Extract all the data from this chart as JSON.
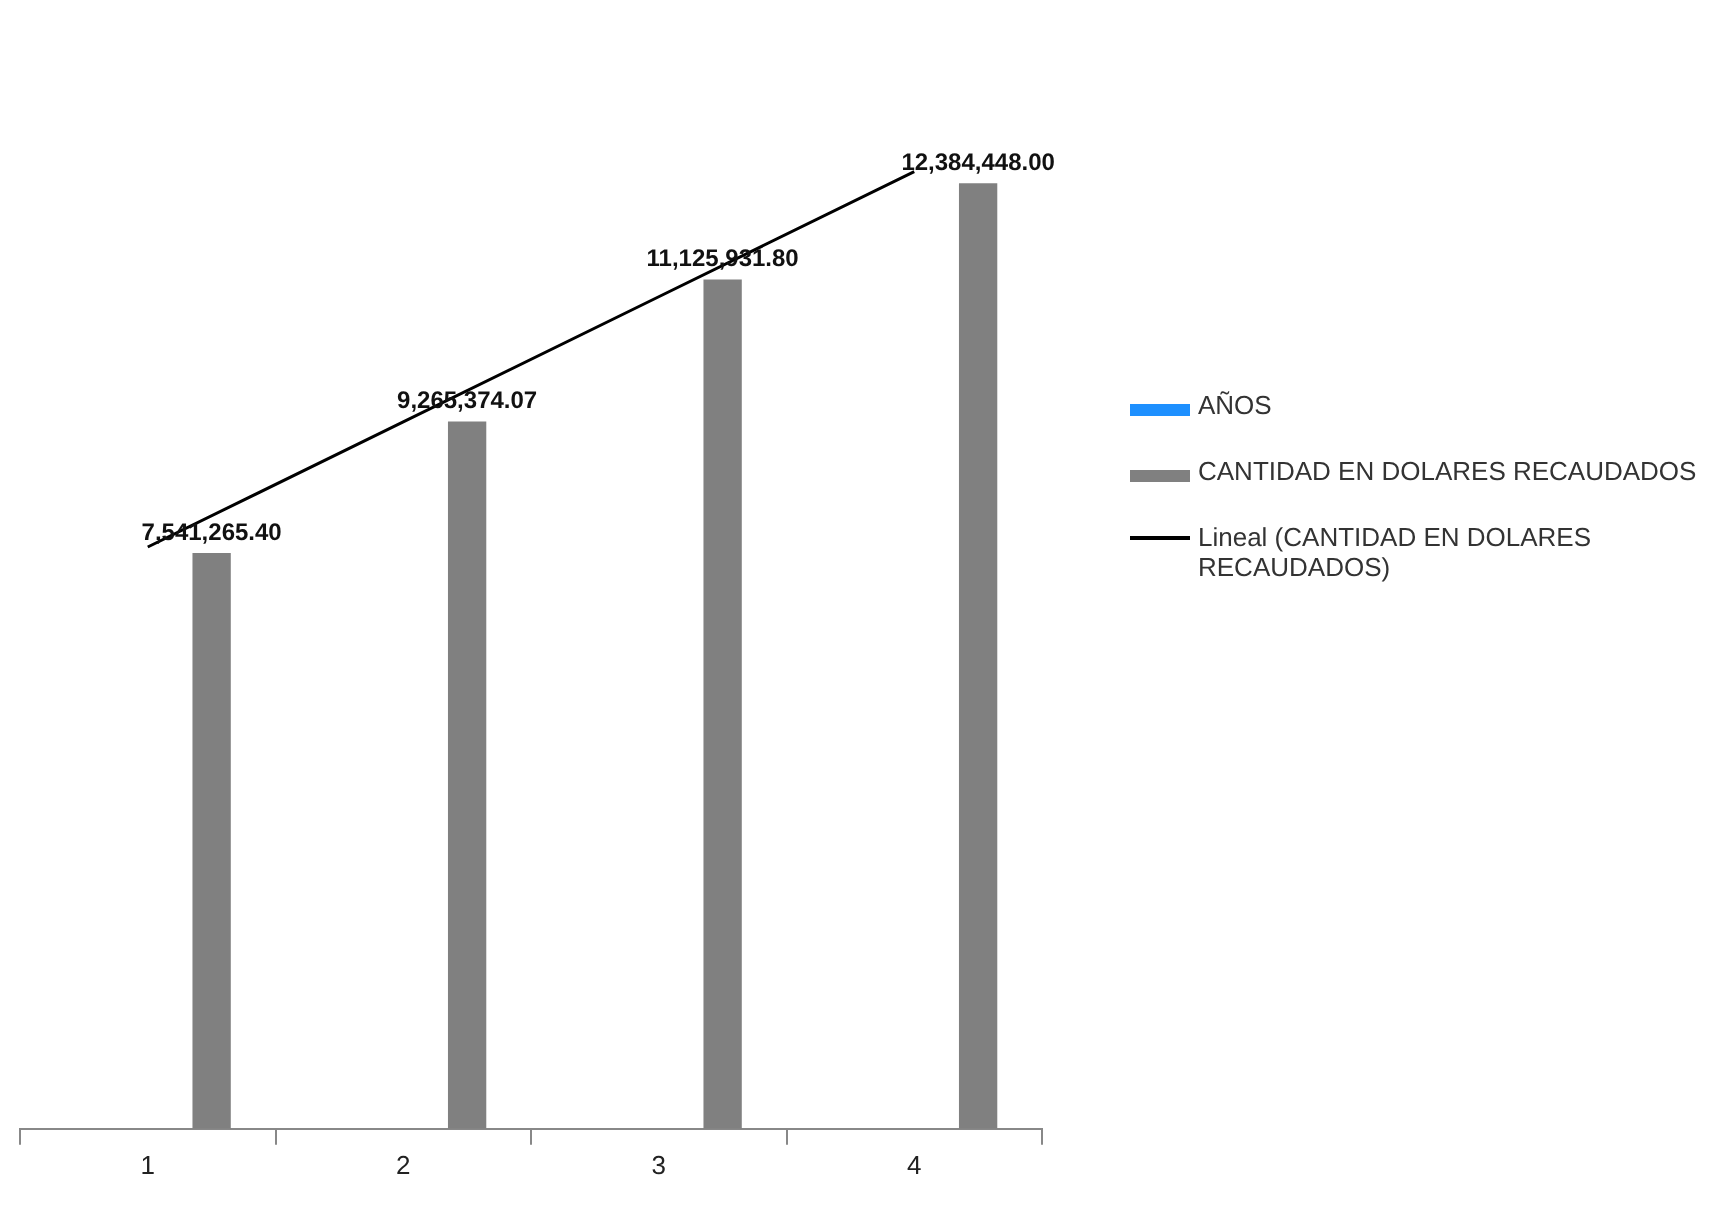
{
  "chart_data": {
    "type": "bar",
    "categories": [
      "1",
      "2",
      "3",
      "4"
    ],
    "series": [
      {
        "name": "AÑOS",
        "color": "#1e90ff",
        "values": [
          null,
          null,
          null,
          null
        ]
      },
      {
        "name": "CANTIDAD EN DOLARES RECAUDADOS",
        "color": "#808080",
        "values": [
          7541265.4,
          9265374.07,
          11125931.8,
          12384448.0
        ],
        "value_labels": [
          "7,541,265.40",
          "9,265,374.07",
          "11,125,931.80",
          "12,384,448.00"
        ]
      },
      {
        "name": "Lineal (CANTIDAD EN DOLARES RECAUDADOS)",
        "type": "line",
        "color": "#000000",
        "values": [
          7620739,
          9259750,
          10898760,
          12537771
        ]
      }
    ],
    "legend": "right",
    "grid": false,
    "tick_labels": "x",
    "marker": "none"
  }
}
